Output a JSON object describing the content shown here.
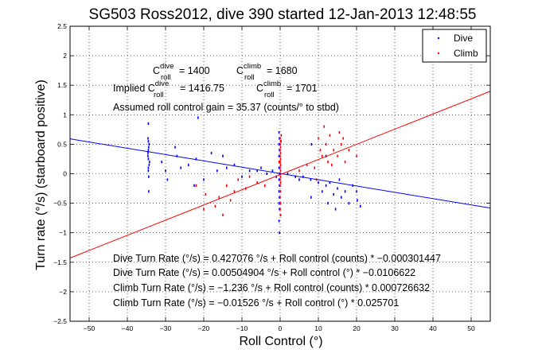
{
  "chart_data": {
    "type": "scatter",
    "title": "SG503 Ross2012, dive 390 started 12-Jan-2013 12:48:55",
    "xlabel": "Roll Control (°)",
    "ylabel": "Turn rate (°/s) (starboard positive)",
    "xlim": [
      -55,
      55
    ],
    "ylim": [
      -2.5,
      2.5
    ],
    "xticks": [
      -50,
      -40,
      -30,
      -20,
      -10,
      0,
      10,
      20,
      30,
      40,
      50
    ],
    "yticks": [
      -2.5,
      -2,
      -1.5,
      -1,
      -0.5,
      0,
      0.5,
      1,
      1.5,
      2,
      2.5
    ],
    "xtick_labels": [
      "−50",
      "−40",
      "−30",
      "−20",
      "−10",
      "0",
      "10",
      "20",
      "30",
      "40",
      "50"
    ],
    "ytick_labels": [
      "−2.5",
      "−2",
      "−1.5",
      "−1",
      "−0.5",
      "0",
      "0.5",
      "1",
      "1.5",
      "2",
      "2.5"
    ],
    "grid": true,
    "legend_position": "top-right",
    "series": [
      {
        "name": "Dive",
        "color": "#0000ff",
        "fit_slope": -0.010662,
        "fit_intercept": 0.005049,
        "points": [
          [
            -34.5,
            0.55
          ],
          [
            -34.4,
            0.45
          ],
          [
            -34.6,
            0.35
          ],
          [
            -34.5,
            0.25
          ],
          [
            -34.3,
            0.15
          ],
          [
            -34.5,
            0.05
          ],
          [
            -34.4,
            -0.05
          ],
          [
            -34.6,
            0.3
          ],
          [
            -34.5,
            0.4
          ],
          [
            -34.2,
            0.2
          ],
          [
            -34.5,
            0.85
          ],
          [
            -34.4,
            -0.3
          ],
          [
            -34.6,
            0.6
          ],
          [
            -34.5,
            0.1
          ],
          [
            -34.3,
            0.5
          ],
          [
            -31.0,
            0.2
          ],
          [
            -30.0,
            0.05
          ],
          [
            -29.5,
            -0.1
          ],
          [
            -27.0,
            0.3
          ],
          [
            -26.0,
            0.1
          ],
          [
            -24.0,
            0.15
          ],
          [
            -22.0,
            0.25
          ],
          [
            -21.5,
            0.95
          ],
          [
            -20.0,
            -0.1
          ],
          [
            -18.0,
            0.35
          ],
          [
            -16.5,
            0.05
          ],
          [
            -15.0,
            0.3
          ],
          [
            -14.0,
            0.1
          ],
          [
            -12.0,
            0.15
          ],
          [
            -10.0,
            -0.05
          ],
          [
            -8.0,
            0.05
          ],
          [
            -6.0,
            0.05
          ],
          [
            -5.0,
            0.1
          ],
          [
            -3.5,
            0.0
          ],
          [
            -2.0,
            0.05
          ],
          [
            -1.0,
            -0.05
          ],
          [
            -0.3,
            0.7
          ],
          [
            -0.2,
            0.6
          ],
          [
            -0.3,
            0.5
          ],
          [
            -0.2,
            0.4
          ],
          [
            -0.3,
            0.3
          ],
          [
            -0.2,
            0.2
          ],
          [
            -0.3,
            0.1
          ],
          [
            -0.2,
            0.0
          ],
          [
            -0.3,
            -0.1
          ],
          [
            -0.2,
            -0.2
          ],
          [
            -0.3,
            -0.3
          ],
          [
            -0.2,
            -0.4
          ],
          [
            -0.3,
            -0.5
          ],
          [
            -0.2,
            -0.6
          ],
          [
            -0.3,
            -0.8
          ],
          [
            -0.2,
            -1.0
          ],
          [
            0.2,
            0.55
          ],
          [
            0.1,
            -0.7
          ],
          [
            2.0,
            0.0
          ],
          [
            4.0,
            -0.05
          ],
          [
            5.0,
            -0.1
          ],
          [
            6.0,
            -0.05
          ],
          [
            8.0,
            -0.1
          ],
          [
            8.2,
            0.5
          ],
          [
            8.1,
            -0.4
          ],
          [
            10.0,
            -0.15
          ],
          [
            11.0,
            -0.3
          ],
          [
            12.0,
            -0.2
          ],
          [
            12.5,
            -0.5
          ],
          [
            13.0,
            -0.15
          ],
          [
            14.0,
            -0.35
          ],
          [
            14.5,
            -0.6
          ],
          [
            15.0,
            -0.25
          ],
          [
            16.0,
            -0.4
          ],
          [
            17.0,
            -0.3
          ],
          [
            18.0,
            -0.5
          ],
          [
            19.0,
            -0.2
          ],
          [
            20.0,
            -0.3
          ],
          [
            20.2,
            -0.45
          ],
          [
            21.0,
            -0.55
          ],
          [
            12.0,
            0.3
          ],
          [
            15.5,
            -0.1
          ],
          [
            -22.5,
            -0.2
          ],
          [
            -27.5,
            0.45
          ]
        ]
      },
      {
        "name": "Climb",
        "color": "#ff0000",
        "fit_slope": 0.025701,
        "fit_intercept": -0.01526,
        "points": [
          [
            0.0,
            0.6
          ],
          [
            0.1,
            0.55
          ],
          [
            0.0,
            0.5
          ],
          [
            0.1,
            0.45
          ],
          [
            0.0,
            0.4
          ],
          [
            0.1,
            0.35
          ],
          [
            0.0,
            0.3
          ],
          [
            0.1,
            0.25
          ],
          [
            0.0,
            0.2
          ],
          [
            0.1,
            0.15
          ],
          [
            0.0,
            0.1
          ],
          [
            0.1,
            0.05
          ],
          [
            0.0,
            0.0
          ],
          [
            0.1,
            -0.05
          ],
          [
            0.0,
            -0.1
          ],
          [
            0.1,
            -0.15
          ],
          [
            0.0,
            -0.2
          ],
          [
            0.1,
            -0.3
          ],
          [
            0.0,
            -0.4
          ],
          [
            0.1,
            -0.5
          ],
          [
            0.0,
            -0.6
          ],
          [
            0.1,
            -0.7
          ],
          [
            0.3,
            0.65
          ],
          [
            -0.3,
            0.2
          ],
          [
            -15.0,
            -0.7
          ],
          [
            -16.0,
            -0.4
          ],
          [
            -17.0,
            -0.55
          ],
          [
            -14.0,
            -0.2
          ],
          [
            -12.0,
            -0.3
          ],
          [
            -11.0,
            -0.1
          ],
          [
            -9.0,
            -0.25
          ],
          [
            -8.0,
            -0.05
          ],
          [
            -6.0,
            -0.15
          ],
          [
            -4.0,
            -0.2
          ],
          [
            -20.0,
            -0.6
          ],
          [
            -19.5,
            -0.35
          ],
          [
            -22.0,
            -0.2
          ],
          [
            -13.0,
            -0.45
          ],
          [
            5.0,
            0.05
          ],
          [
            7.0,
            0.15
          ],
          [
            9.0,
            0.1
          ],
          [
            10.0,
            0.6
          ],
          [
            10.5,
            0.4
          ],
          [
            11.0,
            0.3
          ],
          [
            12.0,
            0.5
          ],
          [
            12.5,
            0.2
          ],
          [
            13.0,
            0.65
          ],
          [
            14.0,
            0.4
          ],
          [
            15.0,
            0.3
          ],
          [
            15.5,
            0.7
          ],
          [
            16.0,
            0.5
          ],
          [
            17.0,
            0.2
          ],
          [
            18.0,
            0.4
          ],
          [
            20.0,
            0.3
          ],
          [
            9.5,
            -0.1
          ],
          [
            11.5,
            0.8
          ],
          [
            13.5,
            0.15
          ],
          [
            16.5,
            0.6
          ]
        ]
      }
    ],
    "annotations": {
      "c_dive_prefix": "C",
      "c_dive_sup": "dive",
      "c_dive_sub": "roll",
      "c_dive_value": " = 1400",
      "c_climb_prefix": "C",
      "c_climb_sup": "climb",
      "c_climb_sub": "roll",
      "c_climb_value": " = 1680",
      "implied_prefix": "Implied C",
      "implied_dive_sup": "dive",
      "implied_dive_sub": "roll",
      "implied_dive_value": " = 1416.75",
      "implied_climb_prefix": "C",
      "implied_climb_sup": "climb",
      "implied_climb_sub": "roll",
      "implied_climb_value": " = 1701",
      "assumed_gain": "Assumed roll control gain = 35.37 (counts/° to stbd)",
      "fit_lines": [
        "Dive Turn Rate (°/s) = 0.427076 °/s + Roll control (counts) * −0.000301447",
        "Dive Turn Rate (°/s) = 0.00504904 °/s + Roll control (°) * −0.0106622",
        "Climb Turn Rate (°/s) = −1.236 °/s + Roll control (counts) * 0.000726632",
        "Climb Turn Rate (°/s) = −0.01526 °/s + Roll control (°) * 0.025701"
      ]
    }
  }
}
